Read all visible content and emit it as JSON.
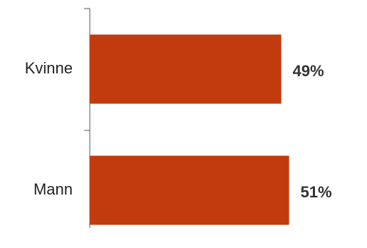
{
  "chart_data": {
    "type": "bar",
    "orientation": "horizontal",
    "categories": [
      "Kvinne",
      "Mann"
    ],
    "values": [
      49,
      51
    ],
    "value_labels": [
      "49%",
      "51%"
    ],
    "title": "",
    "xlabel": "",
    "ylabel": "",
    "xlim": [
      0,
      60
    ],
    "grid": false,
    "bar_color": "#c23b0e"
  }
}
